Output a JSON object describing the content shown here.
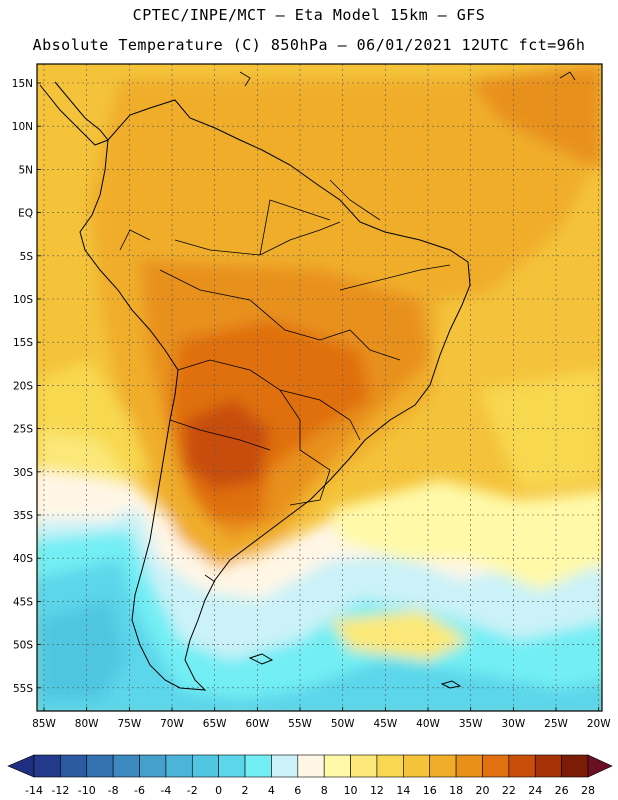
{
  "header": {
    "line1": "CPTEC/INPE/MCT –  Eta Model 15km – GFS",
    "line2": "Absolute Temperature (C) 850hPa – 06/01/2021 12UTC fct=96h"
  },
  "map": {
    "lat_labels": [
      "15N",
      "10N",
      "5N",
      "EQ",
      "5S",
      "10S",
      "15S",
      "20S",
      "25S",
      "30S",
      "35S",
      "40S",
      "45S",
      "50S",
      "55S"
    ],
    "lon_labels": [
      "85W",
      "80W",
      "75W",
      "70W",
      "65W",
      "60W",
      "55W",
      "50W",
      "45W",
      "40W",
      "35W",
      "30W",
      "25W",
      "20W"
    ]
  },
  "colorbar": {
    "ticks": [
      "-14",
      "-12",
      "-10",
      "-8",
      "-6",
      "-4",
      "-2",
      "0",
      "2",
      "4",
      "6",
      "8",
      "10",
      "12",
      "14",
      "16",
      "18",
      "20",
      "22",
      "24",
      "26",
      "28"
    ],
    "colors": [
      "#253a8c",
      "#2c5aa0",
      "#3472b0",
      "#3d8ac0",
      "#46a0cc",
      "#4bb4d8",
      "#50c6e0",
      "#5bd6ea",
      "#72eef4",
      "#caf2f8",
      "#fff6e6",
      "#fff9a8",
      "#fbe878",
      "#f8d850",
      "#f4c33a",
      "#f0ad2a",
      "#e8901a",
      "#e07010",
      "#c84e0a",
      "#a83208",
      "#7a1c06"
    ],
    "under_color": "#1f2e80",
    "over_color": "#6a0f24"
  }
}
